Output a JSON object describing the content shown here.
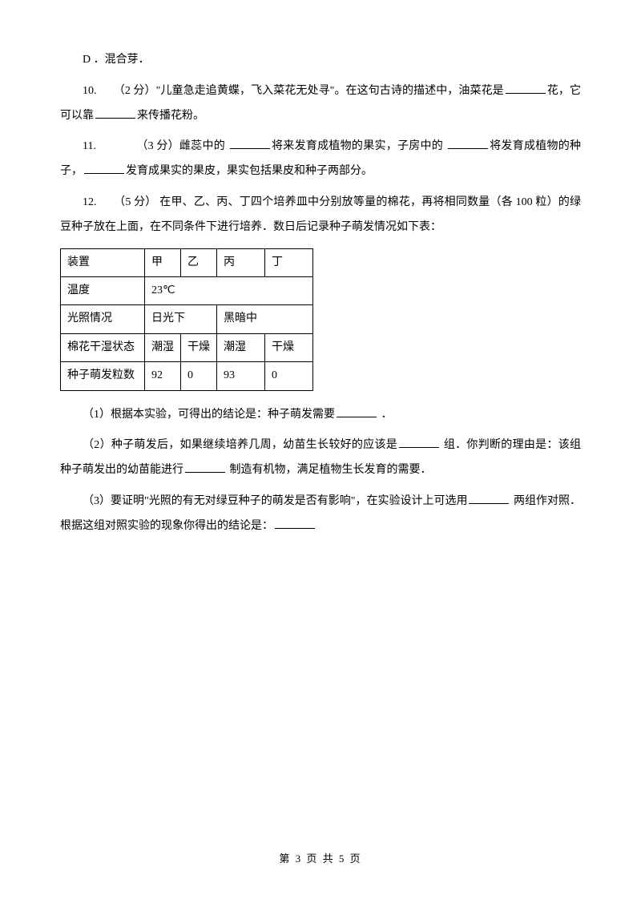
{
  "option_d": "D ．混合芽．",
  "q10": {
    "prefix": "10.　　（2 分）\"儿童急走追黄蝶，飞入菜花无处寻\"。在这句古诗的描述中，油菜花是",
    "mid": "花，它可以靠",
    "suffix": "来传播花粉。"
  },
  "q11": {
    "prefix": "11.　　　　（3 分）雌蕊中的 ",
    "mid1": "将来发育成植物的果实，子房中的 ",
    "mid2": "将发育成植物的种子，",
    "suffix": "发育成果实的果皮，果实包括果皮和种子两部分。"
  },
  "q12": {
    "intro": "12.　　（5 分） 在甲、乙、丙、丁四个培养皿中分别放等量的棉花，再将相同数量（各 100 粒）的绿豆种子放在上面，在不同条件下进行培养．数日后记录种子萌发情况如下表：",
    "table": {
      "row1": [
        "装置",
        "甲",
        "乙",
        "丙",
        "丁"
      ],
      "row2": [
        "温度",
        "23℃"
      ],
      "row3": [
        "光照情况",
        "日光下",
        "黑暗中"
      ],
      "row4": [
        "棉花干湿状态",
        "潮湿",
        "干燥",
        "潮湿",
        "干燥"
      ],
      "row5": [
        "种子萌发粒数",
        "92",
        "0",
        "93",
        "0"
      ]
    },
    "sub1": {
      "prefix": "（1）根据本实验，可得出的结论是：种子萌发需要",
      "suffix": " ．"
    },
    "sub2": {
      "prefix": "（2）种子萌发后，如果继续培养几周，幼苗生长较好的应该是",
      "mid": " 组．你判断的理由是：该组种子萌发出的幼苗能进行",
      "suffix": " 制造有机物，满足植物生长发育的需要．"
    },
    "sub3": {
      "prefix": "（3）要证明\"光照的有无对绿豆种子的萌发是否有影响\"，在实验设计上可选用",
      "mid": " 两组作对照． 根据这组对照实验的现象你得出的结论是：",
      "suffix": ""
    }
  },
  "footer": "第 3 页 共 5 页"
}
